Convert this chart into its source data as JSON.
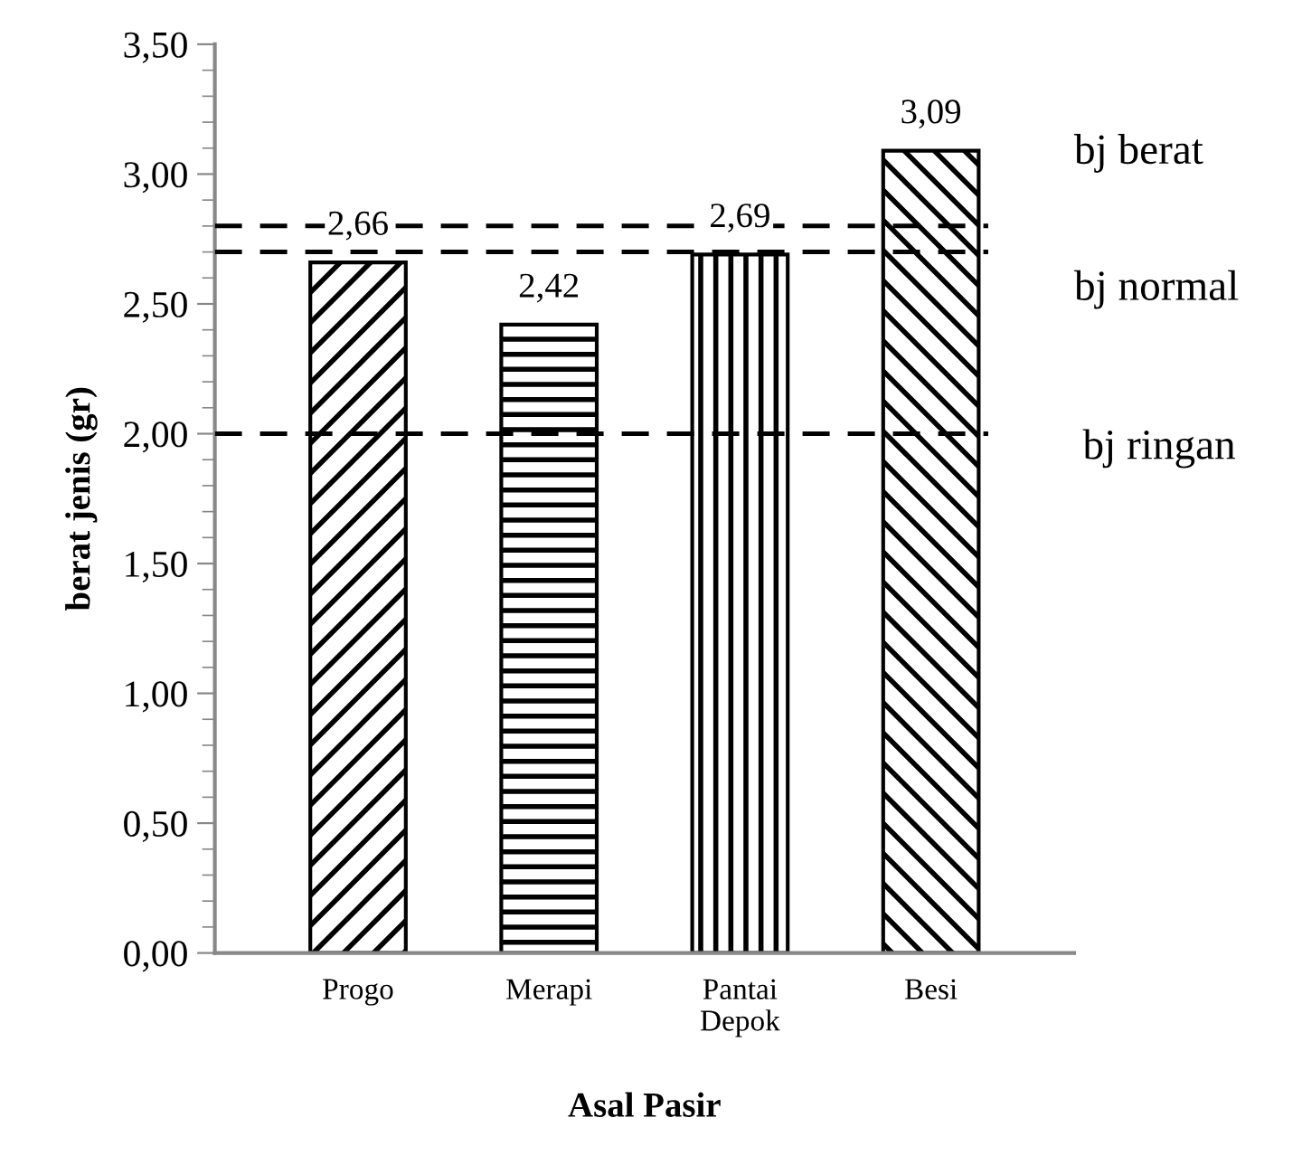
{
  "chart_data": {
    "type": "bar",
    "xlabel": "Asal Pasir",
    "ylabel": "berat jenis (gr)",
    "categories": [
      "Progo",
      "Merapi",
      "Pantai\nDepok",
      "Besi"
    ],
    "values": [
      2.66,
      2.42,
      2.69,
      3.09
    ],
    "color": "#000000",
    "data_labels": true,
    "value_labels": [
      "2,66",
      "2,42",
      "2,69",
      "3,09"
    ],
    "ylim": [
      0,
      3.5
    ],
    "yticks": [
      {
        "value": 0,
        "label": "0,00"
      },
      {
        "value": 0.5,
        "label": "0,50"
      },
      {
        "value": 1,
        "label": "1,00"
      },
      {
        "value": 1.5,
        "label": "1,50"
      },
      {
        "value": 2,
        "label": "2,00"
      },
      {
        "value": 2.5,
        "label": "2,50"
      },
      {
        "value": 3,
        "label": "3,00"
      },
      {
        "value": 3.5,
        "label": "3,50"
      }
    ],
    "ref_lines": [
      {
        "axis": "y",
        "value": 2.8,
        "color": "#000000",
        "line_style": "dashed"
      },
      {
        "axis": "y",
        "value": 2.7,
        "color": "#000000",
        "line_style": "dashed"
      },
      {
        "axis": "y",
        "value": 2.0,
        "color": "#000000",
        "line_style": "dashed"
      }
    ],
    "annotations": [
      "bj berat",
      "bj normal",
      "bj ringan"
    ],
    "grid": false,
    "legend": false
  }
}
